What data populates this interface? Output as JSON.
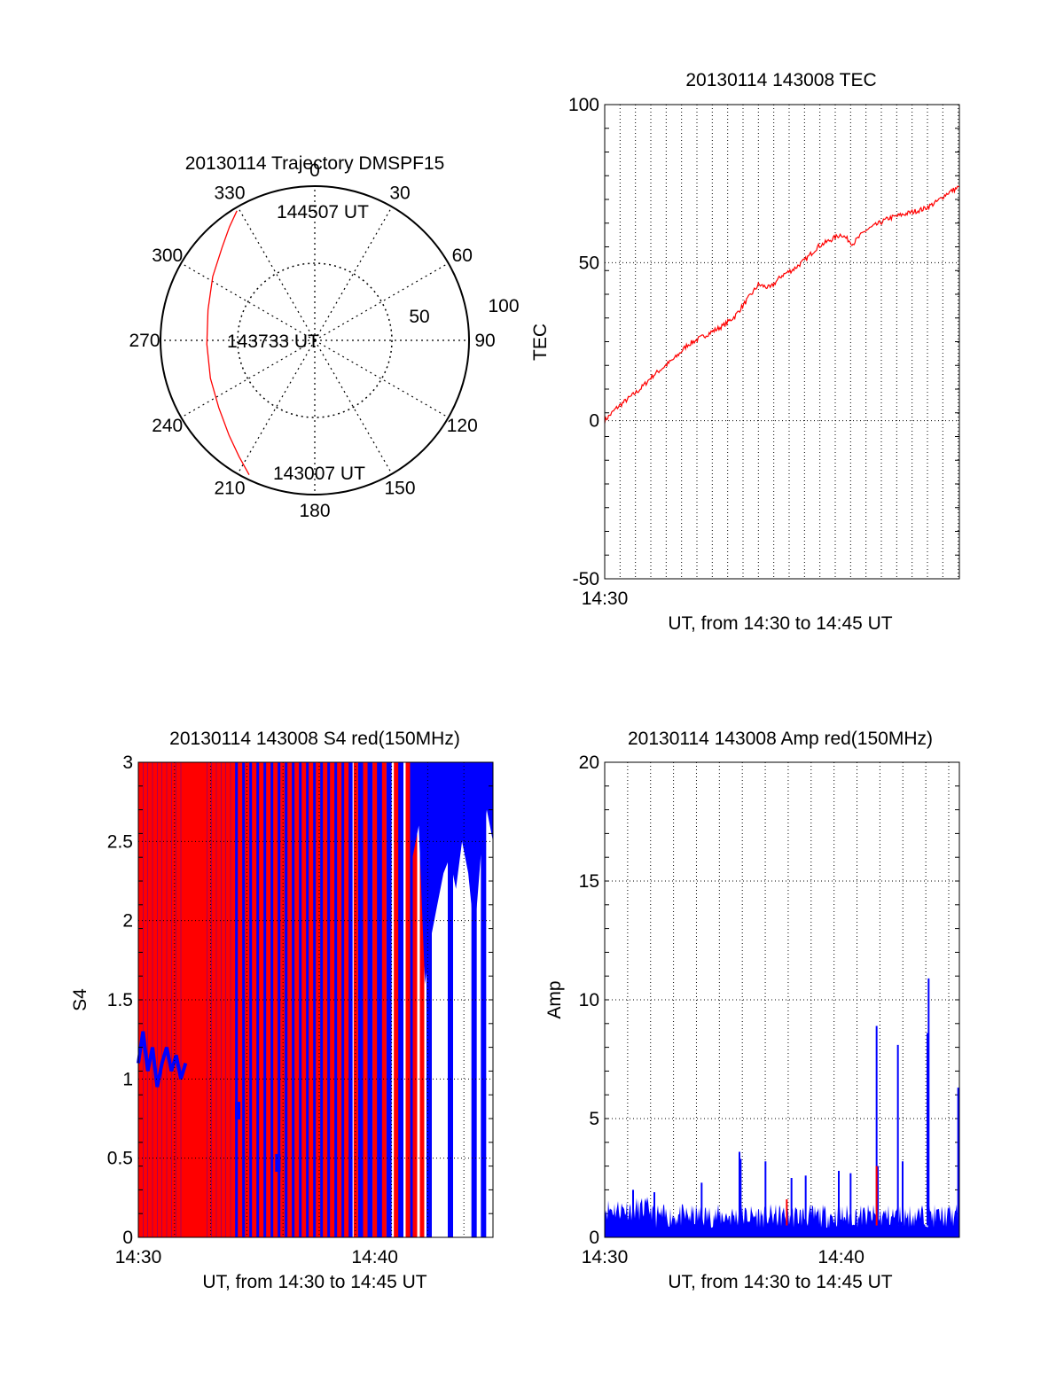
{
  "colors": {
    "red": "#ff0000",
    "blue": "#0000ff",
    "axis": "#000000"
  },
  "chart_data": [
    {
      "type": "polar",
      "title": "20130114 Trajectory DMSPF15",
      "angle_labels": [
        "0",
        "30",
        "60",
        "90",
        "120",
        "150",
        "180",
        "210",
        "240",
        "270",
        "300",
        "330"
      ],
      "radius_labels": [
        "50",
        "100"
      ],
      "rmax": 100,
      "annotations": {
        "start": "143007 UT",
        "mid": "143733 UT",
        "end": "144507 UT"
      },
      "track": [
        {
          "az": 206,
          "r": 97
        },
        {
          "az": 213,
          "r": 90
        },
        {
          "az": 222,
          "r": 83
        },
        {
          "az": 235,
          "r": 76
        },
        {
          "az": 250,
          "r": 72
        },
        {
          "az": 268,
          "r": 70
        },
        {
          "az": 286,
          "r": 72
        },
        {
          "az": 302,
          "r": 78
        },
        {
          "az": 315,
          "r": 85
        },
        {
          "az": 323,
          "r": 92
        },
        {
          "az": 329,
          "r": 98
        }
      ]
    },
    {
      "type": "line",
      "title": "20130114 143008 TEC",
      "xlabel": "UT, from 14:30 to 14:45 UT",
      "ylabel": "TEC",
      "xlim": [
        0,
        15
      ],
      "ylim": [
        -50,
        100
      ],
      "yticks": [
        "-50",
        "0",
        "50",
        "100"
      ],
      "xticks": [
        {
          "at": 0,
          "label": "14:30"
        }
      ],
      "series": [
        {
          "color": "red",
          "x": [
            0,
            0.5,
            1,
            1.5,
            2,
            2.5,
            3,
            3.5,
            4,
            4.5,
            5,
            5.5,
            6,
            6.5,
            7,
            7.5,
            8,
            8.5,
            9,
            9.5,
            10,
            10.5,
            11,
            11.5,
            12,
            12.5,
            13,
            13.5,
            14,
            14.5,
            15
          ],
          "y": [
            0,
            4,
            7,
            10,
            14,
            17,
            20,
            24,
            26,
            28,
            30,
            33,
            38,
            43,
            42,
            46,
            48,
            51,
            55,
            57,
            59,
            56,
            60,
            62,
            64,
            65,
            66,
            67,
            69,
            72,
            74
          ]
        }
      ]
    },
    {
      "type": "scintillation",
      "title": "20130114 143008 S4 red(150MHz)",
      "xlabel": "UT, from 14:30 to 14:45 UT",
      "ylabel": "S4",
      "xlim": [
        0,
        15
      ],
      "ylim": [
        0,
        3
      ],
      "yticks": [
        "0",
        "0.5",
        "1",
        "1.5",
        "2",
        "2.5",
        "3"
      ],
      "xticks": [
        {
          "at": 0,
          "label": "14:30"
        },
        {
          "at": 10,
          "label": "14:40"
        }
      ],
      "red_spikes": [
        0.1,
        0.3,
        0.5,
        0.7,
        0.9,
        1.1,
        1.3,
        1.5,
        1.7,
        1.9,
        2.05,
        2.2,
        2.35,
        2.5,
        2.65,
        2.8,
        3.0,
        3.2,
        3.4,
        3.6,
        3.8,
        4.0,
        4.3,
        4.6,
        4.9,
        5.2,
        5.5,
        5.8,
        6.1,
        6.4,
        6.7,
        7.0,
        7.3,
        7.6,
        7.9,
        8.2,
        8.5,
        8.8,
        9.2,
        9.6,
        10.0,
        10.4,
        10.9,
        11.4,
        11.7,
        12.0
      ],
      "blue_spikes": [
        0.2,
        0.4,
        0.6,
        0.8,
        1.0,
        1.2,
        1.4,
        1.6,
        1.8,
        2.0,
        2.15,
        2.3,
        2.45,
        2.6,
        2.75,
        2.9,
        3.1,
        3.3,
        3.5,
        3.7,
        3.9,
        4.15,
        4.45,
        4.75,
        5.05,
        5.35,
        5.65,
        5.95,
        6.25,
        6.55,
        6.85,
        7.15,
        7.45,
        7.75,
        8.05,
        8.35,
        8.65,
        8.95,
        9.4,
        9.8,
        10.2,
        10.6,
        11.1,
        11.55,
        12.3,
        13.2,
        14.2,
        14.6
      ],
      "red_fills": [
        [
          11.4,
          11.5
        ]
      ],
      "blue_band": {
        "x0": 11.6,
        "x1": 15,
        "y_top": 3,
        "y_bottom": [
          2.4,
          2.6,
          1.6,
          1.9,
          2.1,
          2.3,
          2.4,
          2.2,
          2.5,
          2.3,
          1.9,
          2.4,
          2.7,
          2.5
        ]
      },
      "blue_trace": {
        "x": [
          0,
          0.2,
          0.4,
          0.6,
          0.8,
          1.0,
          1.2,
          1.4,
          1.6,
          1.8,
          2.0
        ],
        "y": [
          1.1,
          1.3,
          1.05,
          1.2,
          0.95,
          1.1,
          1.2,
          1.05,
          1.15,
          1.0,
          1.1
        ]
      },
      "blue_dots": [
        {
          "x": 4.2,
          "y": 0.8
        },
        {
          "x": 5.9,
          "y": 0.47
        }
      ]
    },
    {
      "type": "scintillation-amp",
      "title": "20130114 143008 Amp red(150MHz)",
      "xlabel": "UT, from 14:30 to 14:45 UT",
      "ylabel": "Amp",
      "xlim": [
        0,
        15
      ],
      "ylim": [
        0,
        20
      ],
      "yticks": [
        "0",
        "5",
        "10",
        "15",
        "20"
      ],
      "xticks": [
        {
          "at": 0,
          "label": "14:30"
        },
        {
          "at": 10,
          "label": "14:40"
        }
      ],
      "baseline": 0.7,
      "noise_amp": 1.0,
      "spikes": [
        {
          "x": 1.2,
          "y": 2.0
        },
        {
          "x": 2.1,
          "y": 1.9
        },
        {
          "x": 4.1,
          "y": 2.3
        },
        {
          "x": 5.7,
          "y": 3.6
        },
        {
          "x": 5.75,
          "y": 3.3
        },
        {
          "x": 6.8,
          "y": 3.2
        },
        {
          "x": 7.9,
          "y": 2.5
        },
        {
          "x": 8.5,
          "y": 2.6
        },
        {
          "x": 9.9,
          "y": 2.8
        },
        {
          "x": 10.4,
          "y": 2.7
        },
        {
          "x": 11.5,
          "y": 8.9
        },
        {
          "x": 11.55,
          "y": 3.0
        },
        {
          "x": 12.4,
          "y": 8.1
        },
        {
          "x": 12.6,
          "y": 3.2
        },
        {
          "x": 13.7,
          "y": 10.9
        },
        {
          "x": 13.65,
          "y": 8.6
        },
        {
          "x": 14.95,
          "y": 6.3
        }
      ],
      "red_spikes": [
        {
          "x": 7.7,
          "y": 1.6
        },
        {
          "x": 11.5,
          "y": 3.0
        }
      ]
    }
  ]
}
